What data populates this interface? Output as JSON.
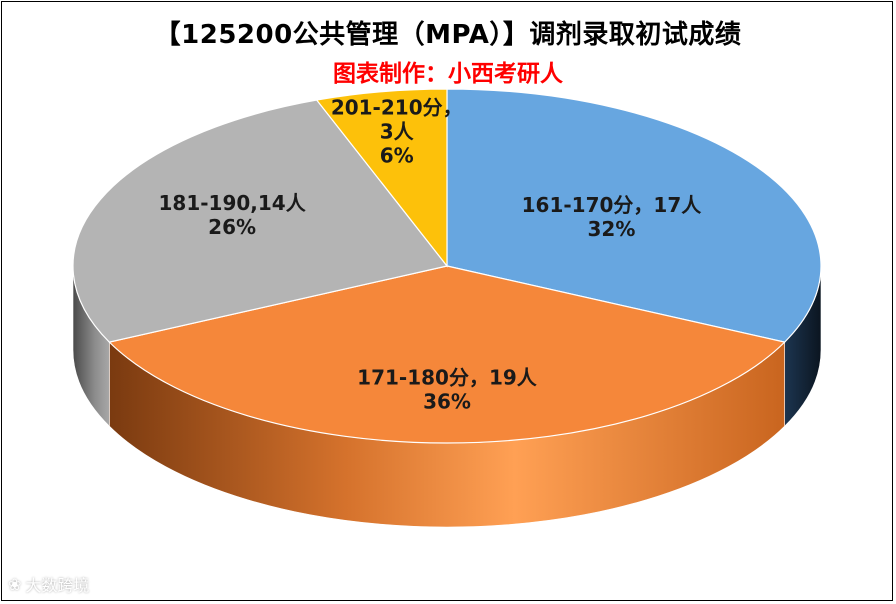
{
  "title": "【125200公共管理（MPA）】调剂录取初试成绩",
  "subtitle": "图表制作：小西考研人",
  "watermark": "大数跨境",
  "colors": {
    "blue": "#67a6e0",
    "orange": "#f5873a",
    "gray": "#b4b4b4",
    "yellow": "#fdc10a",
    "title": "#000000",
    "subtitle": "#ff0000"
  },
  "chart_data": {
    "type": "pie",
    "style": "3d",
    "title": "【125200公共管理（MPA）】调剂录取初试成绩",
    "subtitle": "图表制作：小西考研人",
    "slices": [
      {
        "category": "161-170分",
        "count": 17,
        "percent": 32,
        "label_lines": [
          "161-170分，17人",
          "32%"
        ],
        "color": "#67a6e0"
      },
      {
        "category": "171-180分",
        "count": 19,
        "percent": 36,
        "label_lines": [
          "171-180分，19人",
          "36%"
        ],
        "color": "#f5873a"
      },
      {
        "category": "181-190",
        "count": 14,
        "percent": 26,
        "label_lines": [
          "181-190,14人",
          "26%"
        ],
        "color": "#b4b4b4"
      },
      {
        "category": "201-210分",
        "count": 3,
        "percent": 6,
        "label_lines": [
          "201-210分，",
          "3人",
          "6%"
        ],
        "color": "#fdc10a"
      }
    ],
    "legend": "none"
  }
}
